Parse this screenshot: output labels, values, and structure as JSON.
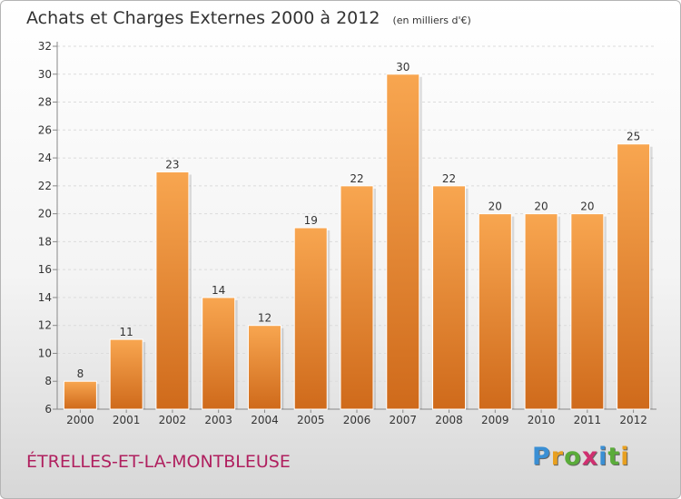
{
  "chart_data": {
    "type": "bar",
    "title": "Achats et Charges Externes 2000 à 2012",
    "subtitle": "(en milliers d'€)",
    "categories": [
      "2000",
      "2001",
      "2002",
      "2003",
      "2004",
      "2005",
      "2006",
      "2007",
      "2008",
      "2009",
      "2010",
      "2011",
      "2012"
    ],
    "values": [
      8,
      11,
      23,
      14,
      12,
      19,
      22,
      30,
      22,
      20,
      20,
      20,
      25
    ],
    "ylim": [
      6,
      32
    ],
    "yticks": [
      6,
      8,
      10,
      12,
      14,
      16,
      18,
      20,
      22,
      24,
      26,
      28,
      30,
      32
    ],
    "grid": true,
    "bar_color": "#f0963c",
    "bar_color_dark": "#d06a1c"
  },
  "footer": {
    "place": "ÉTRELLES-ET-LA-MONTBLEUSE"
  },
  "logo": {
    "letters": [
      "P",
      "r",
      "o",
      "x",
      "i",
      "t",
      "i"
    ],
    "colors": [
      "#3a8fd4",
      "#e8a020",
      "#5aac3a",
      "#d02f70",
      "#3a8fd4",
      "#5aac3a",
      "#e8a020"
    ]
  }
}
